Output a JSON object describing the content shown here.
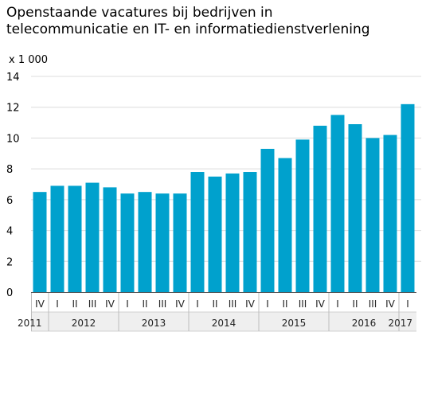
{
  "chart_data": {
    "type": "bar",
    "title_lines": [
      "Openstaande vacatures bij bedrijven in",
      "telecommunicatie en IT- en informatiedienstverlening"
    ],
    "unit_label": "x 1 000",
    "ylim": [
      0,
      14
    ],
    "yticks": [
      0,
      2,
      4,
      6,
      8,
      10,
      12,
      14
    ],
    "grid": true,
    "bar_color": "#00a1cd",
    "categories": [
      "IV",
      "I",
      "II",
      "III",
      "IV",
      "I",
      "II",
      "III",
      "IV",
      "I",
      "II",
      "III",
      "IV",
      "I",
      "II",
      "III",
      "IV",
      "I",
      "II",
      "III",
      "IV",
      "I"
    ],
    "years": [
      {
        "label": "2011",
        "count": 1
      },
      {
        "label": "2012",
        "count": 4
      },
      {
        "label": "2013",
        "count": 4
      },
      {
        "label": "2014",
        "count": 4
      },
      {
        "label": "2015",
        "count": 4
      },
      {
        "label": "2016",
        "count": 4
      },
      {
        "label": "2017",
        "count": 1
      }
    ],
    "values": [
      6.5,
      6.9,
      6.9,
      7.1,
      6.8,
      6.4,
      6.5,
      6.4,
      6.4,
      7.8,
      7.5,
      7.7,
      7.8,
      9.3,
      8.7,
      9.9,
      10.8,
      11.5,
      10.9,
      10.0,
      10.2,
      12.2
    ]
  }
}
